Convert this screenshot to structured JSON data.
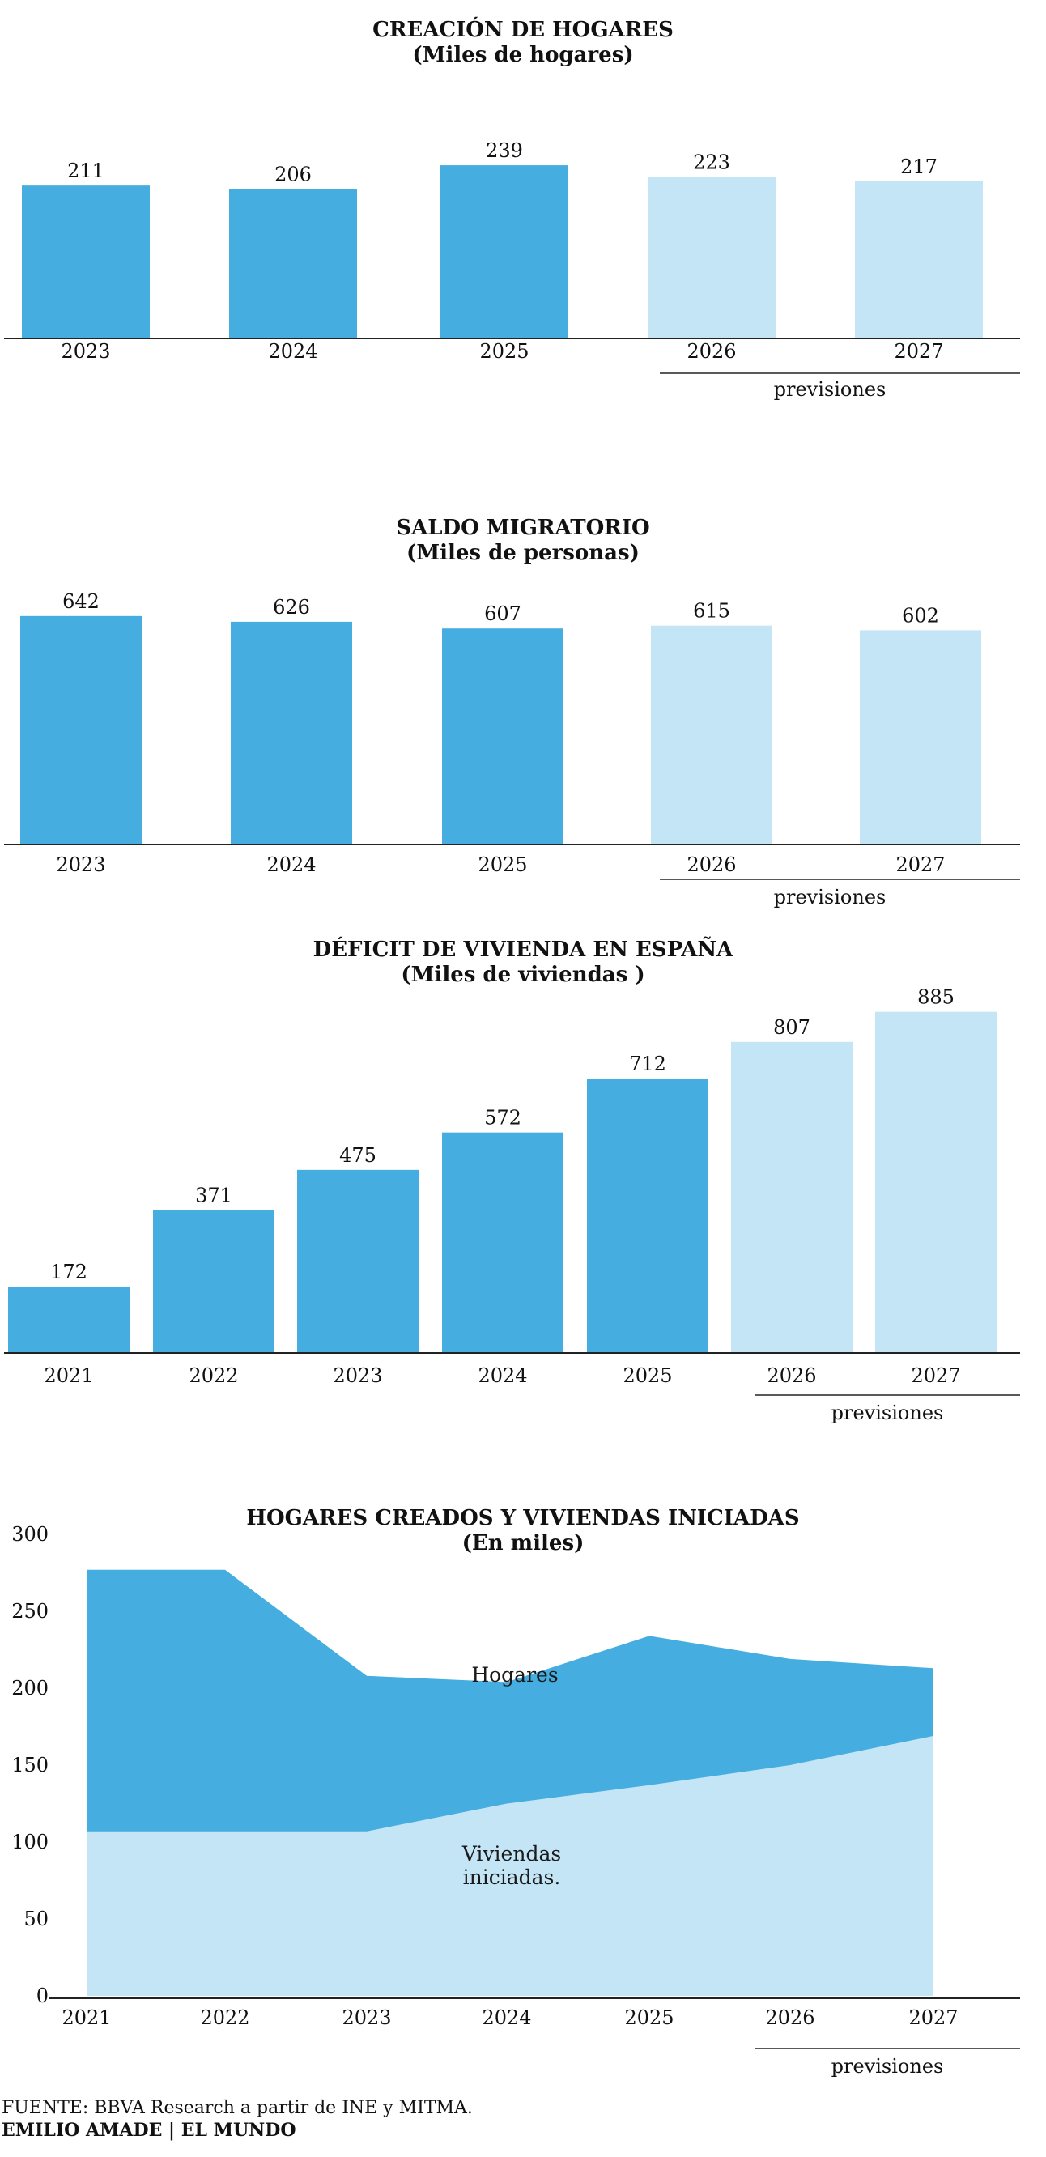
{
  "colors": {
    "actual": "#45ade0",
    "forecast": "#c4e5f6",
    "axis": "#222222",
    "text": "#111111"
  },
  "chart_data": [
    {
      "type": "bar",
      "title": "CREACIÓN DE HOGARES",
      "subtitle": "(Miles de hogares)",
      "categories": [
        "2023",
        "2024",
        "2025",
        "2026",
        "2027"
      ],
      "values": [
        211,
        206,
        239,
        223,
        217
      ],
      "forecast_from_index": 3,
      "forecast_label": "previsiones"
    },
    {
      "type": "bar",
      "title": "SALDO MIGRATORIO",
      "subtitle": "(Miles de personas)",
      "categories": [
        "2023",
        "2024",
        "2025",
        "2026",
        "2027"
      ],
      "values": [
        642,
        626,
        607,
        615,
        602
      ],
      "forecast_from_index": 3,
      "forecast_label": "previsiones"
    },
    {
      "type": "bar",
      "title": "DÉFICIT DE VIVIENDA EN ESPAÑA",
      "subtitle": "(Miles de viviendas )",
      "categories": [
        "2021",
        "2022",
        "2023",
        "2024",
        "2025",
        "2026",
        "2027"
      ],
      "values": [
        172,
        371,
        475,
        572,
        712,
        807,
        885
      ],
      "forecast_from_index": 5,
      "forecast_label": "previsiones"
    },
    {
      "type": "area",
      "title": "HOGARES CREADOS Y VIVIENDAS INICIADAS",
      "subtitle": "(En miles)",
      "x": [
        "2021",
        "2022",
        "2023",
        "2024",
        "2025",
        "2026",
        "2027"
      ],
      "ylim": [
        0,
        300
      ],
      "yticks": [
        "0",
        "50",
        "100",
        "150",
        "200",
        "250",
        "300"
      ],
      "series": [
        {
          "name": "Hogares",
          "values": [
            277,
            277,
            208,
            204,
            234,
            219,
            213
          ]
        },
        {
          "name": "Viviendas iniciadas.",
          "values": [
            107,
            107,
            107,
            125,
            137,
            150,
            169
          ]
        }
      ],
      "forecast_label": "previsiones"
    }
  ],
  "source": {
    "label": "FUENTE:",
    "text": "BBVA Research a partir de INE y MITMA.",
    "author": "EMILIO AMADE",
    "separator": "|",
    "outlet": "EL MUNDO"
  }
}
